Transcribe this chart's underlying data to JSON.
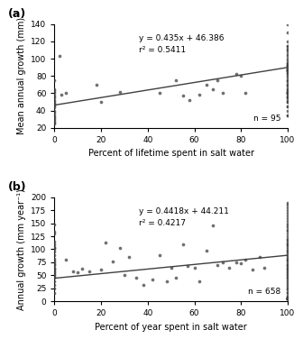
{
  "panel_a": {
    "label": "(a)",
    "scatter_x": [
      0,
      0,
      0,
      0,
      0,
      0,
      0,
      0,
      0,
      0,
      0,
      0,
      0,
      0,
      0,
      0,
      0,
      0,
      0,
      0,
      2,
      3,
      5,
      18,
      20,
      28,
      45,
      52,
      55,
      58,
      62,
      65,
      68,
      70,
      72,
      78,
      80,
      82,
      100,
      100,
      100,
      100,
      100,
      100,
      100,
      100,
      100,
      100,
      100,
      100,
      100,
      100,
      100,
      100,
      100,
      100,
      100,
      100,
      100,
      100,
      100,
      100,
      100,
      100,
      100,
      100,
      100,
      100,
      100,
      100,
      100,
      100,
      100,
      100,
      100,
      100,
      100,
      100,
      100,
      100,
      100,
      100,
      100,
      100,
      100,
      100,
      100,
      100,
      100,
      100,
      100,
      100,
      100,
      100
    ],
    "scatter_y": [
      75,
      65,
      63,
      60,
      57,
      55,
      52,
      50,
      48,
      47,
      46,
      44,
      40,
      38,
      35,
      32,
      30,
      28,
      26,
      25,
      103,
      58,
      60,
      70,
      50,
      62,
      60,
      75,
      57,
      52,
      58,
      70,
      65,
      75,
      60,
      82,
      80,
      60,
      140,
      130,
      120,
      115,
      112,
      108,
      105,
      103,
      100,
      98,
      95,
      93,
      92,
      92,
      90,
      88,
      88,
      86,
      85,
      83,
      82,
      80,
      78,
      75,
      73,
      70,
      68,
      65,
      63,
      62,
      60,
      60,
      58,
      56,
      55,
      55,
      52,
      50,
      45,
      40,
      35,
      60,
      88,
      88,
      115,
      110,
      93,
      95,
      85,
      75,
      70,
      65,
      60,
      50,
      45,
      35
    ],
    "equation": "y = 0.435x + 46.386",
    "r2": "r² = 0.5411",
    "n_label": "n = 95",
    "slope": 0.435,
    "intercept": 46.386,
    "xlabel": "Percent of lifetime spent in salt water",
    "ylabel": "Mean annual growth (mm)",
    "xlim": [
      0,
      100
    ],
    "ylim": [
      20,
      140
    ],
    "yticks": [
      20,
      40,
      60,
      80,
      100,
      120,
      140
    ],
    "xticks": [
      0,
      20,
      40,
      60,
      80,
      100
    ]
  },
  "panel_b": {
    "label": "(b)",
    "scatter_x": [
      0,
      0,
      0,
      0,
      0,
      0,
      0,
      0,
      0,
      0,
      0,
      0,
      0,
      0,
      0,
      0,
      0,
      0,
      0,
      0,
      0,
      0,
      0,
      0,
      0,
      0,
      0,
      0,
      5,
      8,
      10,
      12,
      15,
      20,
      22,
      25,
      28,
      30,
      32,
      35,
      38,
      42,
      45,
      48,
      50,
      52,
      55,
      57,
      60,
      62,
      65,
      68,
      70,
      72,
      75,
      78,
      80,
      82,
      85,
      88,
      90,
      100,
      100,
      100,
      100,
      100,
      100,
      100,
      100,
      100,
      100,
      100,
      100,
      100,
      100,
      100,
      100,
      100,
      100,
      100,
      100,
      100,
      100,
      100,
      100,
      100,
      100,
      100,
      100,
      100,
      100,
      100,
      100,
      100,
      100,
      100,
      100,
      100,
      100,
      100,
      100,
      100,
      100,
      100,
      100,
      100,
      100,
      100,
      100,
      100,
      100,
      100,
      100,
      100,
      100,
      100,
      100,
      100,
      100,
      100,
      100,
      100,
      100,
      100,
      100,
      100,
      100,
      100,
      100,
      100,
      100
    ],
    "scatter_y": [
      147,
      133,
      130,
      115,
      110,
      105,
      103,
      100,
      95,
      88,
      82,
      78,
      75,
      72,
      70,
      65,
      63,
      60,
      57,
      55,
      52,
      50,
      47,
      45,
      38,
      32,
      25,
      15,
      80,
      58,
      55,
      62,
      58,
      60,
      113,
      77,
      102,
      50,
      85,
      45,
      32,
      42,
      88,
      38,
      65,
      45,
      110,
      67,
      65,
      38,
      98,
      145,
      70,
      75,
      65,
      75,
      73,
      80,
      60,
      85,
      65,
      190,
      185,
      180,
      175,
      170,
      165,
      160,
      155,
      150,
      145,
      142,
      138,
      135,
      130,
      125,
      120,
      118,
      115,
      112,
      110,
      108,
      105,
      100,
      97,
      95,
      92,
      88,
      85,
      82,
      80,
      78,
      75,
      72,
      70,
      68,
      65,
      62,
      60,
      57,
      55,
      52,
      50,
      47,
      45,
      42,
      38,
      35,
      32,
      28,
      25,
      22,
      18,
      15,
      10,
      8,
      5,
      5,
      5,
      5,
      5,
      5,
      5,
      5,
      5,
      5,
      5,
      5,
      5,
      5,
      5
    ],
    "equation": "y = 0.4418x + 44.211",
    "r2": "r² = 0.4217",
    "n_label": "n = 658",
    "slope": 0.4418,
    "intercept": 44.211,
    "xlabel": "Percent of year spent in salt water",
    "ylabel": "Annual growth (mm year⁻¹)",
    "xlim": [
      0,
      100
    ],
    "ylim": [
      0,
      200
    ],
    "yticks": [
      0,
      25,
      50,
      75,
      100,
      125,
      150,
      175,
      200
    ],
    "xticks": [
      0,
      20,
      40,
      60,
      80,
      100
    ]
  },
  "dot_color": "#404040",
  "line_color": "#404040",
  "dot_size": 7,
  "dot_alpha": 0.75,
  "background_color": "#ffffff"
}
